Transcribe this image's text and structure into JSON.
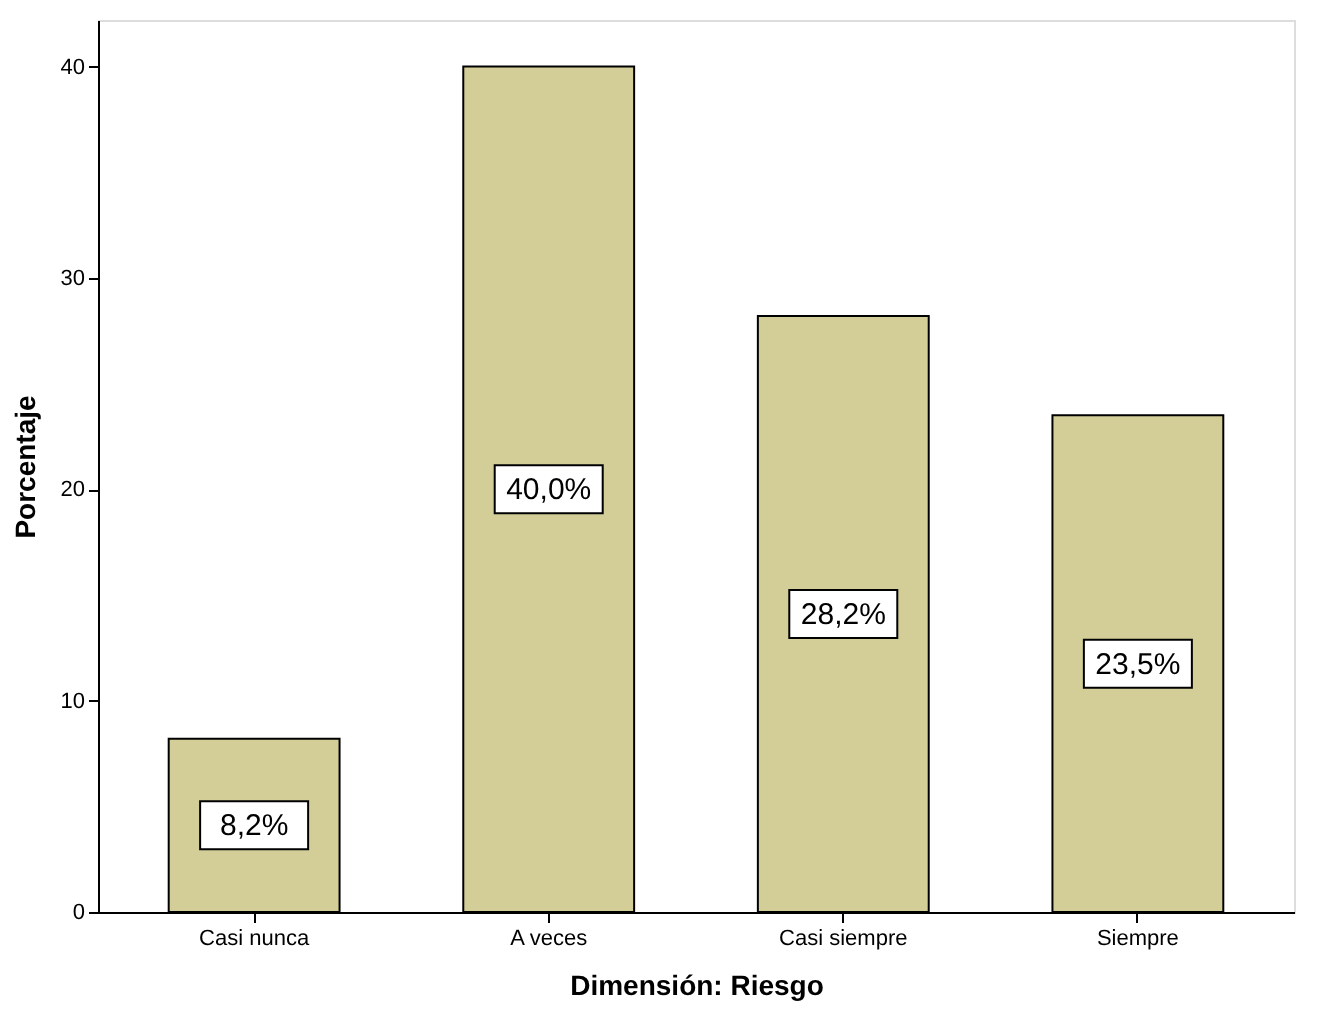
{
  "chart_data": {
    "type": "bar",
    "xlabel": "Dimensión: Riesgo",
    "ylabel": "Porcentaje",
    "categories": [
      "Casi nunca",
      "A veces",
      "Casi siempre",
      "Siempre"
    ],
    "values": [
      8.2,
      40.0,
      28.2,
      23.5
    ],
    "value_labels": [
      "8,2%",
      "40,0%",
      "28,2%",
      "23,5%"
    ],
    "color": "#d3ce97",
    "ylim": [
      0,
      42.2
    ],
    "yticks": [
      0,
      10,
      20,
      30,
      40
    ],
    "grid": false
  }
}
